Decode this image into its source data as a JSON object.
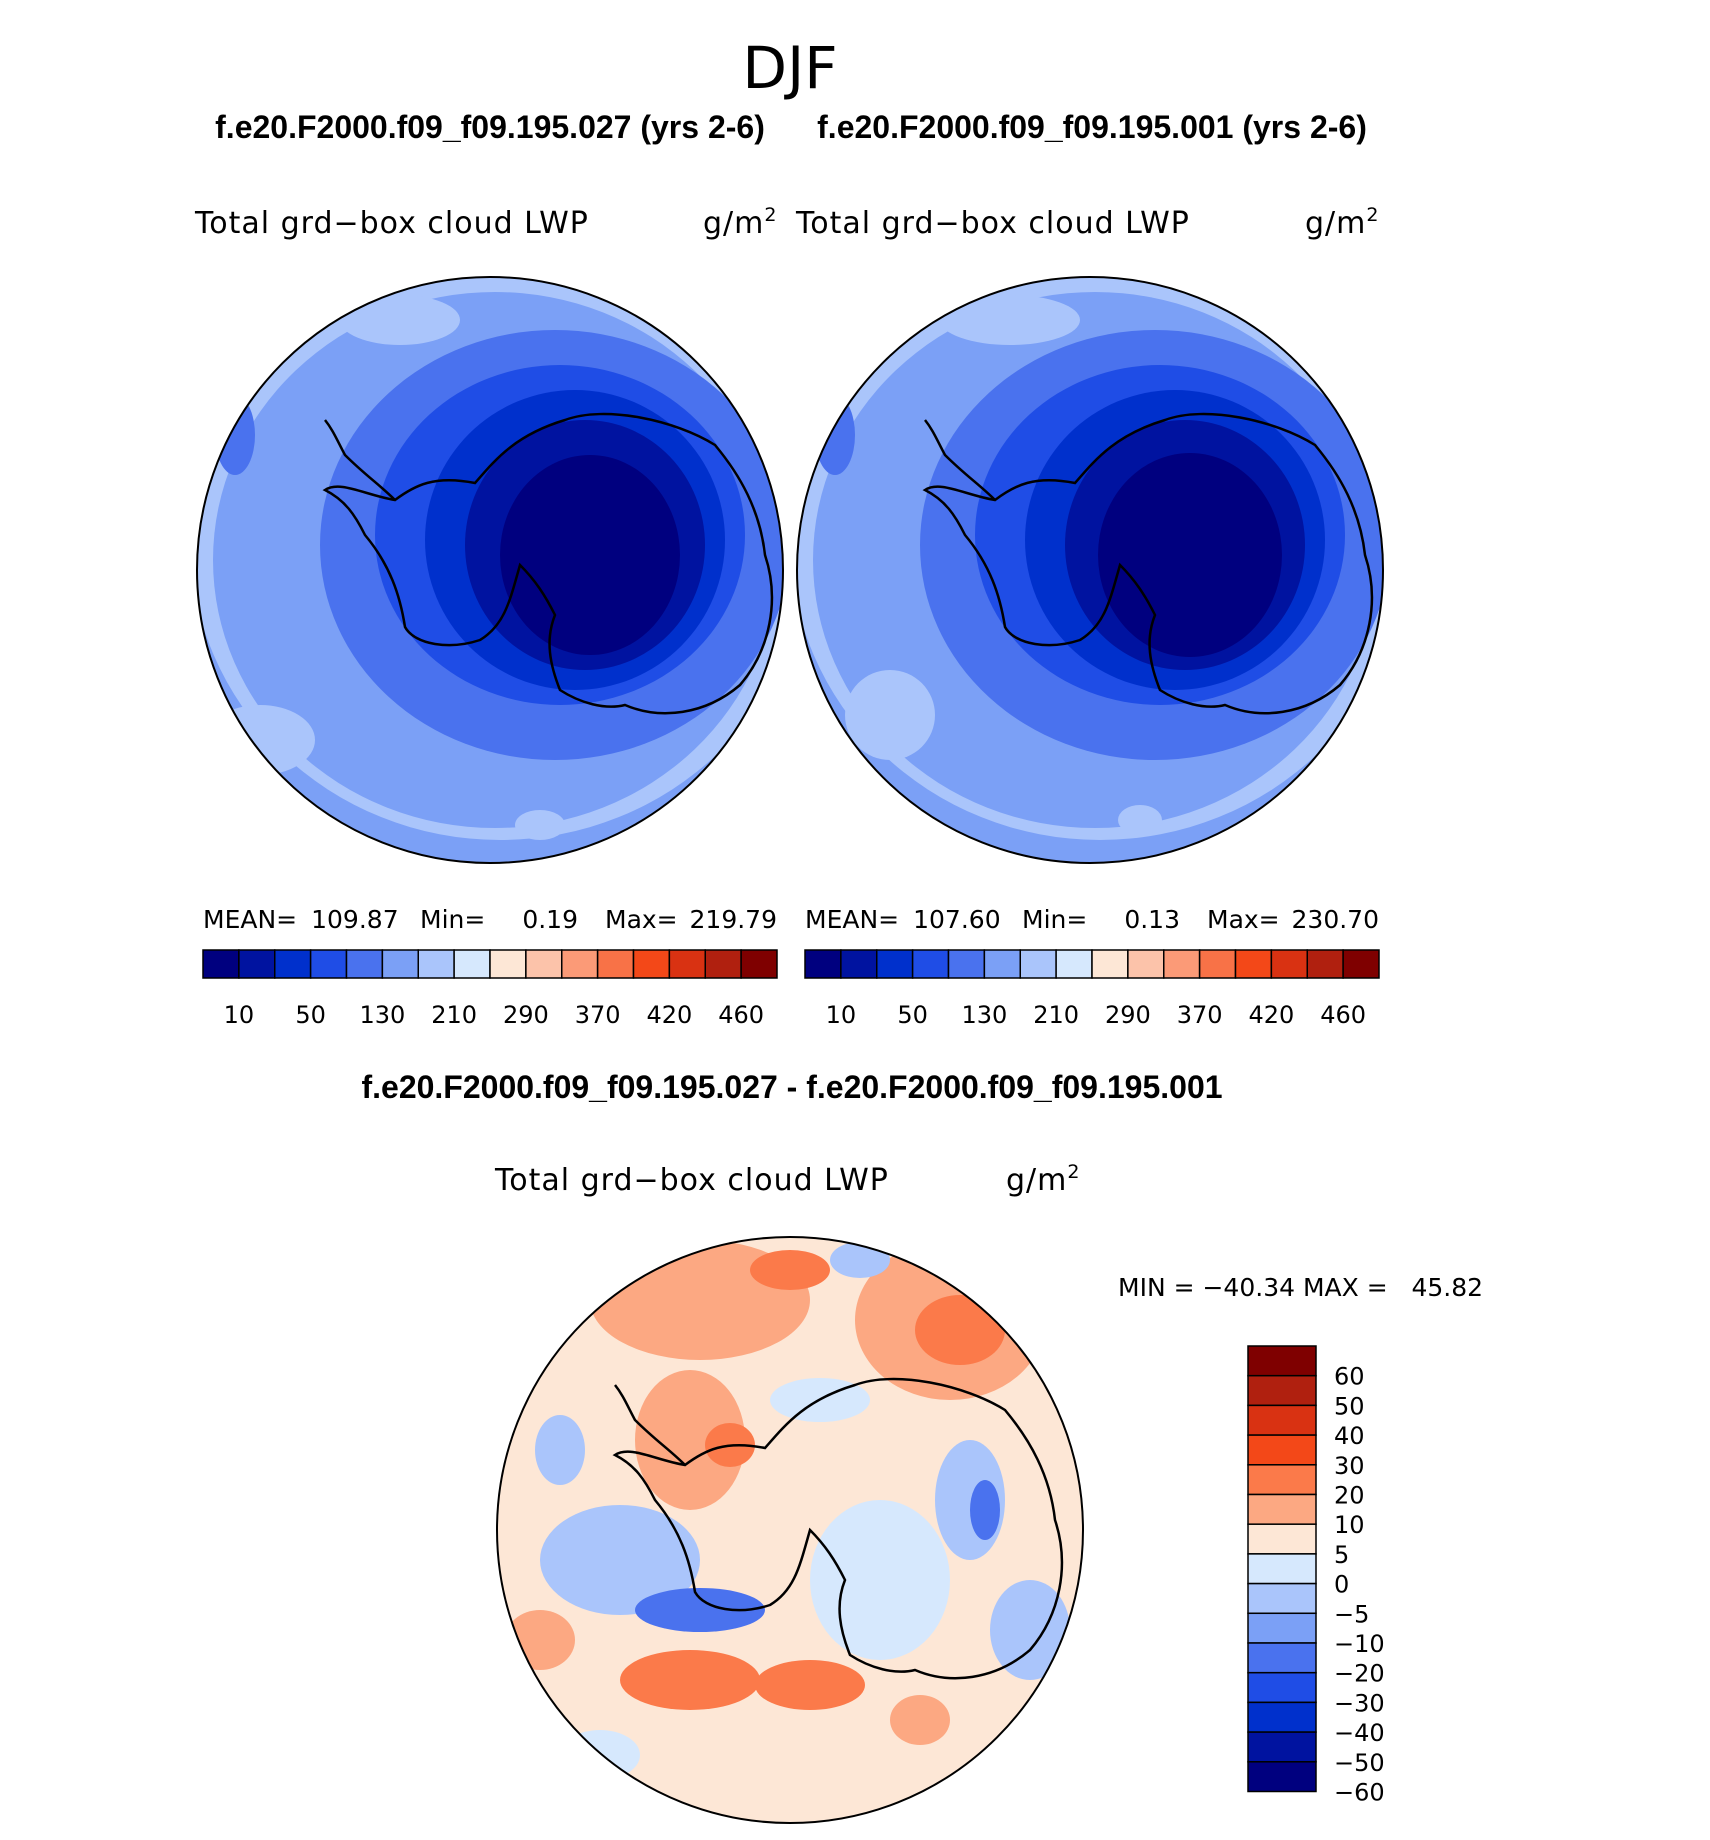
{
  "title": "DJF",
  "panels": [
    {
      "case_title": "f.e20.F2000.f09_f09.195.027 (yrs 2-6)",
      "variable": "Total grd−box cloud LWP",
      "units": "g/m",
      "units_sup": "2",
      "stats": {
        "mean_label": "MEAN=",
        "mean": "109.87",
        "min_label": "Min=",
        "min": "0.19",
        "max_label": "Max=",
        "max": "219.79"
      }
    },
    {
      "case_title": "f.e20.F2000.f09_f09.195.001 (yrs 2-6)",
      "variable": "Total grd−box cloud LWP",
      "units": "g/m",
      "units_sup": "2",
      "stats": {
        "mean_label": "MEAN=",
        "mean": "107.60",
        "min_label": "Min=",
        "min": "0.13",
        "max_label": "Max=",
        "max": "230.70"
      }
    }
  ],
  "diff_panel": {
    "case_title": "f.e20.F2000.f09_f09.195.027 - f.e20.F2000.f09_f09.195.001",
    "variable": "Total grd−box cloud LWP",
    "units": "g/m",
    "units_sup": "2",
    "minmax": "MIN = −40.34 MAX =   45.82"
  },
  "colorbar_abs": {
    "colors": [
      "#00007f",
      "#0013a0",
      "#0030cc",
      "#1f4de6",
      "#4a72ee",
      "#7ba0f6",
      "#aac5fb",
      "#d6e8fd",
      "#fde7d6",
      "#fcc3aa",
      "#fb9a77",
      "#f87247",
      "#f34818",
      "#d93212",
      "#b0200f",
      "#7f0000"
    ],
    "labels": [
      "10",
      "50",
      "130",
      "210",
      "290",
      "370",
      "420",
      "460"
    ]
  },
  "colorbar_diff": {
    "colors": [
      "#7f0000",
      "#b0200f",
      "#d93212",
      "#f34818",
      "#fb7a4a",
      "#fca882",
      "#fde7d6",
      "#d6e8fd",
      "#aac5fb",
      "#7ba0f6",
      "#4a72ee",
      "#1f4de6",
      "#0030cc",
      "#0013a0",
      "#00007f"
    ],
    "labels": [
      "60",
      "50",
      "40",
      "30",
      "20",
      "10",
      "5",
      "0",
      "−5",
      "−10",
      "−20",
      "−30",
      "−40",
      "−50",
      "−60"
    ]
  }
}
